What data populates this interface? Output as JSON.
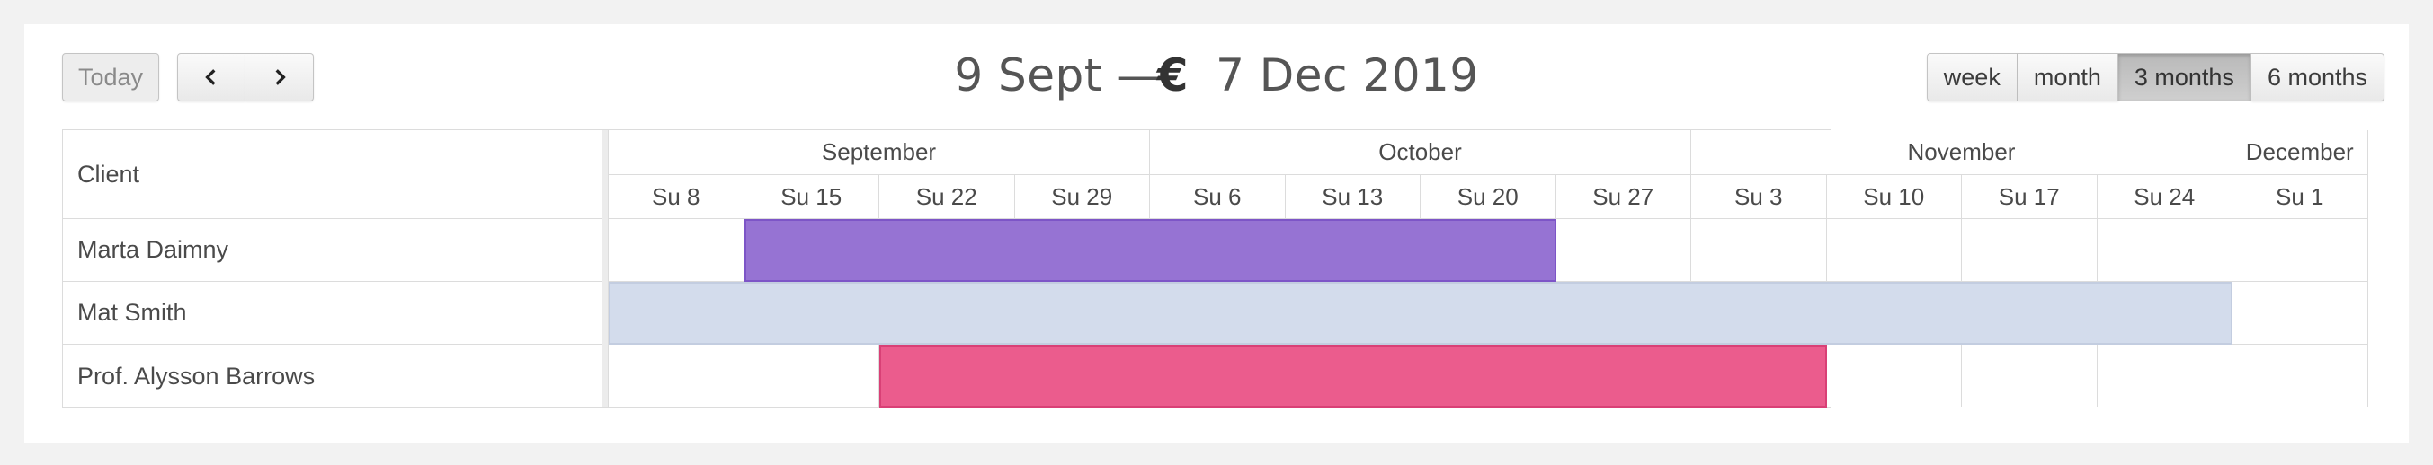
{
  "toolbar": {
    "today_label": "Today",
    "prev_icon": "chevron-left-icon",
    "next_icon": "chevron-right-icon",
    "title_start": "9 Sept —",
    "title_euro": "€",
    "title_end": "7 Dec 2019",
    "views": [
      "week",
      "month",
      "3 months",
      "6 months"
    ],
    "active_view": "3 months"
  },
  "grid": {
    "client_header": "Client",
    "months": [
      "September",
      "October",
      "November",
      "December"
    ],
    "weeks": [
      "Su 8",
      "Su 15",
      "Su 22",
      "Su 29",
      "Su 6",
      "Su 13",
      "Su 20",
      "Su 27",
      "Su 3",
      "Su 10",
      "Su 17",
      "Su 24",
      "Su 1"
    ],
    "clients": [
      "Marta Daimny",
      "Mat Smith",
      "Prof. Alysson Barrows"
    ]
  },
  "events": [
    {
      "client": "Marta Daimny",
      "start_week": "Su 15",
      "end_week": "Su 20",
      "color": "#9673d3",
      "border": "#7d55c7"
    },
    {
      "client": "Mat Smith",
      "start_week": "Su 8",
      "end_week": "Su 24",
      "color": "#d3dcec",
      "border": "#c3cde0"
    },
    {
      "client": "Prof. Alysson Barrows",
      "start_week": "Su 22",
      "end_week": "Su 3",
      "color": "#eb5c8d",
      "border": "#d94076"
    }
  ]
}
